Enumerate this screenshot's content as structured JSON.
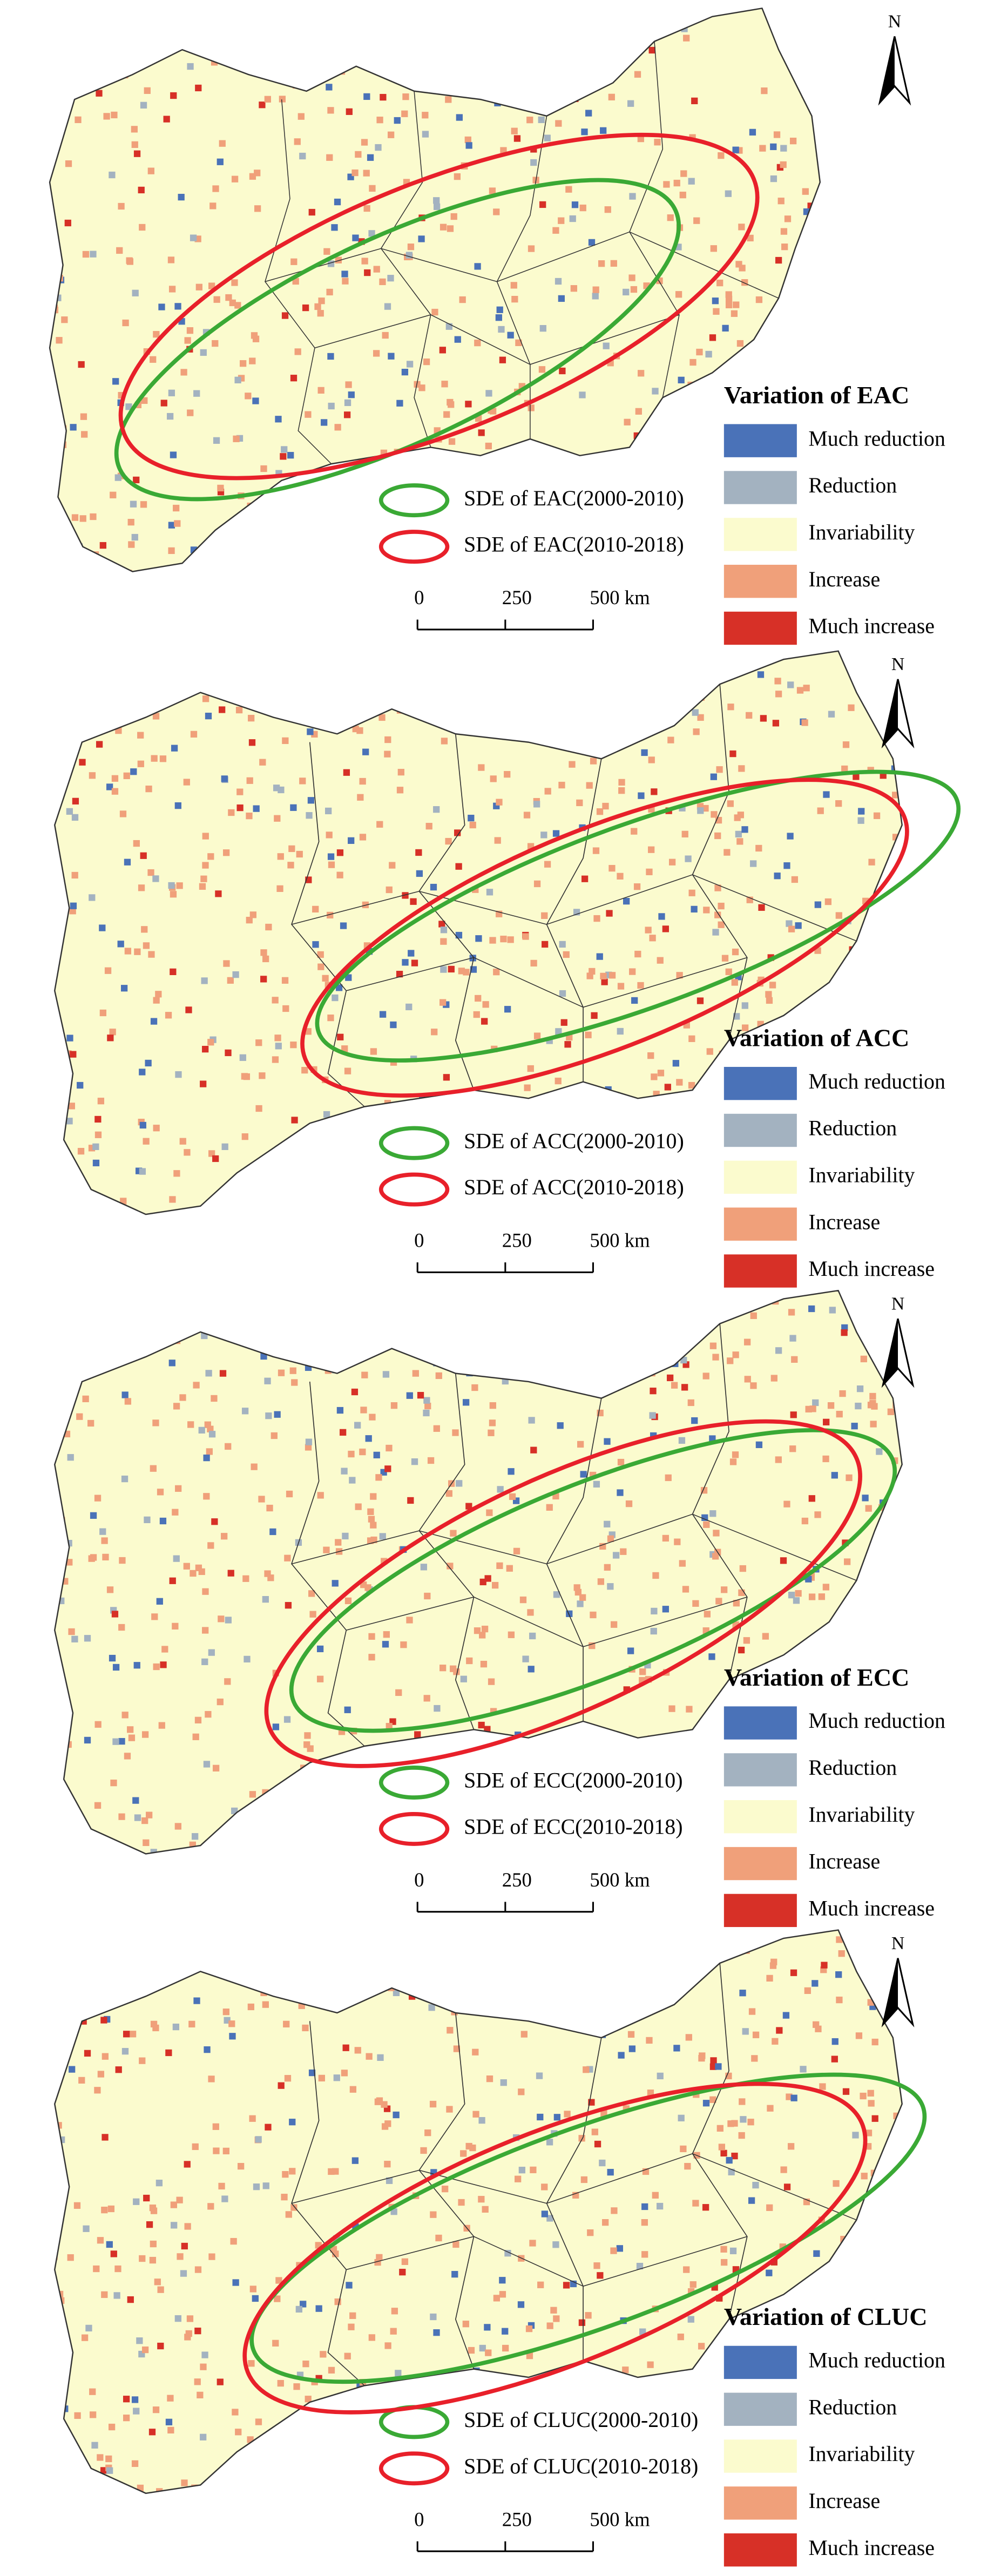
{
  "panels": [
    {
      "legend_title": "Variation of EAC",
      "legend_items": [
        {
          "label": "Much reduction",
          "color": "#4a72b8"
        },
        {
          "label": "Reduction",
          "color": "#a3b2c0"
        },
        {
          "label": "Invariability",
          "color": "#fbfbce"
        },
        {
          "label": "Increase",
          "color": "#f0a07a"
        },
        {
          "label": "Much increase",
          "color": "#d73027"
        }
      ],
      "sde": [
        {
          "label": "SDE of EAC(2000-2010)",
          "color": "#3aa935"
        },
        {
          "label": "SDE of EAC(2010-2018)",
          "color": "#e8202a"
        }
      ],
      "scale_bar": [
        0,
        250,
        {
          "value": 500,
          "label": "500 km"
        }
      ],
      "north": "N"
    },
    {
      "legend_title": "Variation of ACC",
      "legend_items": [
        {
          "label": "Much reduction",
          "color": "#4a72b8"
        },
        {
          "label": "Reduction",
          "color": "#a3b2c0"
        },
        {
          "label": "Invariability",
          "color": "#fbfbce"
        },
        {
          "label": "Increase",
          "color": "#f0a07a"
        },
        {
          "label": "Much increase",
          "color": "#d73027"
        }
      ],
      "sde": [
        {
          "label": "SDE of ACC(2000-2010)",
          "color": "#3aa935"
        },
        {
          "label": "SDE of ACC(2010-2018)",
          "color": "#e8202a"
        }
      ],
      "scale_bar": [
        0,
        250,
        {
          "value": 500,
          "label": "500 km"
        }
      ],
      "north": "N"
    },
    {
      "legend_title": "Variation of ECC",
      "legend_items": [
        {
          "label": "Much reduction",
          "color": "#4a72b8"
        },
        {
          "label": "Reduction",
          "color": "#a3b2c0"
        },
        {
          "label": "Invariability",
          "color": "#fbfbce"
        },
        {
          "label": "Increase",
          "color": "#f0a07a"
        },
        {
          "label": "Much increase",
          "color": "#d73027"
        }
      ],
      "sde": [
        {
          "label": "SDE of ECC(2000-2010)",
          "color": "#3aa935"
        },
        {
          "label": "SDE of ECC(2010-2018)",
          "color": "#e8202a"
        }
      ],
      "scale_bar": [
        0,
        250,
        {
          "value": 500,
          "label": "500 km"
        }
      ],
      "north": "N"
    },
    {
      "legend_title": "Variation of CLUC",
      "legend_items": [
        {
          "label": "Much reduction",
          "color": "#4a72b8"
        },
        {
          "label": "Reduction",
          "color": "#a3b2c0"
        },
        {
          "label": "Invariability",
          "color": "#fbfbce"
        },
        {
          "label": "Increase",
          "color": "#f0a07a"
        },
        {
          "label": "Much increase",
          "color": "#d73027"
        }
      ],
      "sde": [
        {
          "label": "SDE of CLUC(2000-2010)",
          "color": "#3aa935"
        },
        {
          "label": "SDE of CLUC(2010-2018)",
          "color": "#e8202a"
        }
      ],
      "scale_bar": [
        0,
        250,
        {
          "value": 500,
          "label": "500 km"
        }
      ],
      "north": "N"
    }
  ]
}
